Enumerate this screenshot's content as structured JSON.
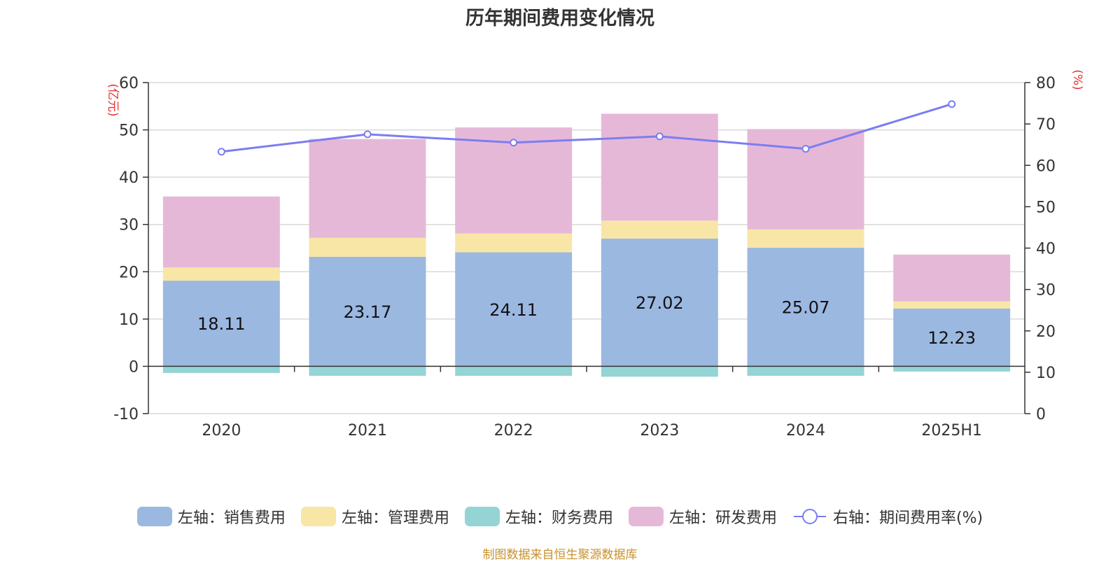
{
  "title": "历年期间费用变化情况",
  "source": "制图数据来自恒生聚源数据库",
  "chart_data": {
    "type": "bar",
    "stacked": true,
    "categories": [
      "2020",
      "2021",
      "2022",
      "2023",
      "2024",
      "2025H1"
    ],
    "series": [
      {
        "name": "左轴：销售费用",
        "axis": "left",
        "color": "#9bb8e1",
        "values": [
          18.11,
          23.17,
          24.11,
          27.02,
          25.07,
          12.23
        ],
        "labels": [
          "18.11",
          "23.17",
          "24.11",
          "27.02",
          "25.07",
          "12.23"
        ]
      },
      {
        "name": "左轴：管理费用",
        "axis": "left",
        "color": "#f8e6a6",
        "values": [
          2.8,
          4.0,
          4.0,
          3.8,
          3.9,
          1.5
        ]
      },
      {
        "name": "左轴：财务费用",
        "axis": "left",
        "color": "#94d4d4",
        "values": [
          -1.4,
          -2.0,
          -2.0,
          -2.2,
          -2.0,
          -1.1
        ]
      },
      {
        "name": "左轴：研发费用",
        "axis": "left",
        "color": "#e6b8d8",
        "values": [
          15.0,
          20.9,
          22.4,
          22.6,
          21.2,
          9.9
        ]
      },
      {
        "name": "右轴：期间费用率(%)",
        "axis": "right",
        "type": "line",
        "color": "#7b7ef0",
        "values": [
          63.3,
          67.5,
          65.5,
          67.0,
          64.0,
          74.8
        ]
      }
    ],
    "left_axis": {
      "unit": "(亿元)",
      "min": -10,
      "max": 60,
      "ticks": [
        "-10",
        "0",
        "10",
        "20",
        "30",
        "40",
        "50",
        "60"
      ]
    },
    "right_axis": {
      "unit": "(%)",
      "min": 0,
      "max": 80,
      "ticks": [
        "0",
        "10",
        "20",
        "30",
        "40",
        "50",
        "60",
        "70",
        "80"
      ]
    },
    "grid": true,
    "legend_position": "bottom"
  }
}
